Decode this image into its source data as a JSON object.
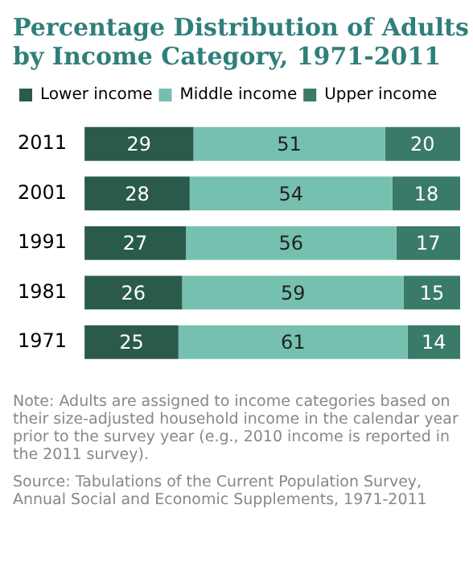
{
  "chart_data": {
    "type": "bar",
    "orientation": "horizontal",
    "stacked": true,
    "title": "Percentage Distribution of Adults by Income Category, 1971-2011",
    "categories": [
      "2011",
      "2001",
      "1991",
      "1981",
      "1971"
    ],
    "series": [
      {
        "name": "Lower income",
        "color": "#2a5a4b",
        "values": [
          29,
          28,
          27,
          26,
          25
        ]
      },
      {
        "name": "Middle income",
        "color": "#76c0af",
        "values": [
          51,
          54,
          56,
          59,
          61
        ]
      },
      {
        "name": "Upper income",
        "color": "#3a7a68",
        "values": [
          20,
          18,
          17,
          15,
          14
        ]
      }
    ],
    "xlim": [
      0,
      100
    ],
    "tick_labels": "y",
    "legend": "top",
    "data_labels": true,
    "annotations": [
      "Note: Adults are assigned to income categories based on their size-adjusted household income in the calendar year prior to the survey year (e.g., 2010 income is reported in the 2011 survey).",
      "Source: Tabulations of the Current Population Survey, Annual Social and Economic Supplements, 1971-2011"
    ]
  }
}
